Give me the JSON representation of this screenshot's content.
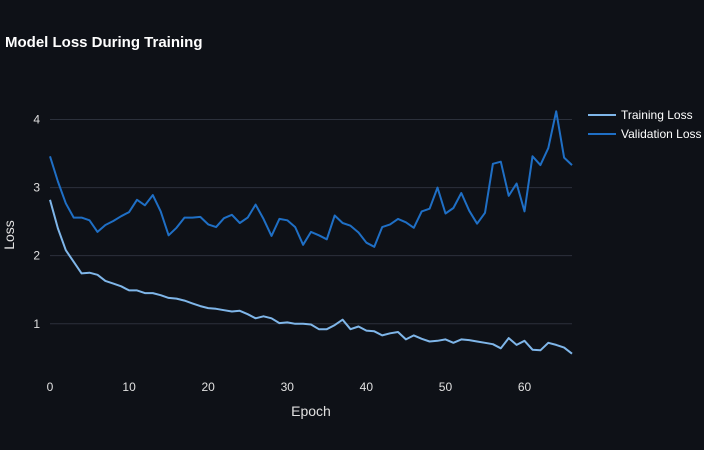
{
  "chart_data": {
    "type": "line",
    "title": "Model Loss During Training",
    "xlabel": "Epoch",
    "ylabel": "Loss",
    "xlim": [
      0,
      66
    ],
    "ylim": [
      0.38,
      4.58
    ],
    "x_ticks": [
      0,
      10,
      20,
      30,
      40,
      50,
      60
    ],
    "y_ticks": [
      1,
      2,
      3,
      4
    ],
    "grid": "horizontal",
    "legend_position": "right",
    "series": [
      {
        "name": "Training Loss",
        "color": "#7fb6e9",
        "values": [
          2.82,
          2.4,
          2.08,
          1.91,
          1.74,
          1.75,
          1.72,
          1.63,
          1.59,
          1.55,
          1.49,
          1.49,
          1.45,
          1.45,
          1.42,
          1.38,
          1.37,
          1.34,
          1.3,
          1.26,
          1.23,
          1.22,
          1.2,
          1.18,
          1.19,
          1.14,
          1.08,
          1.11,
          1.08,
          1.01,
          1.02,
          1.0,
          1.0,
          0.99,
          0.92,
          0.92,
          0.98,
          1.06,
          0.92,
          0.96,
          0.9,
          0.89,
          0.83,
          0.86,
          0.88,
          0.77,
          0.83,
          0.78,
          0.74,
          0.75,
          0.77,
          0.72,
          0.77,
          0.76,
          0.74,
          0.72,
          0.7,
          0.64,
          0.79,
          0.69,
          0.75,
          0.62,
          0.61,
          0.72,
          0.69,
          0.65,
          0.56
        ]
      },
      {
        "name": "Validation Loss",
        "color": "#1f6fc5",
        "values": [
          3.46,
          3.09,
          2.77,
          2.56,
          2.56,
          2.52,
          2.35,
          2.45,
          2.51,
          2.58,
          2.64,
          2.82,
          2.74,
          2.89,
          2.65,
          2.3,
          2.41,
          2.56,
          2.56,
          2.57,
          2.46,
          2.42,
          2.55,
          2.6,
          2.48,
          2.56,
          2.75,
          2.54,
          2.29,
          2.54,
          2.52,
          2.42,
          2.16,
          2.35,
          2.3,
          2.24,
          2.59,
          2.48,
          2.44,
          2.34,
          2.19,
          2.13,
          2.42,
          2.46,
          2.54,
          2.49,
          2.41,
          2.65,
          2.69,
          3.0,
          2.62,
          2.7,
          2.92,
          2.66,
          2.47,
          2.63,
          3.35,
          3.38,
          2.88,
          3.06,
          2.65,
          3.46,
          3.33,
          3.58,
          4.12,
          3.44,
          3.33
        ]
      }
    ]
  }
}
